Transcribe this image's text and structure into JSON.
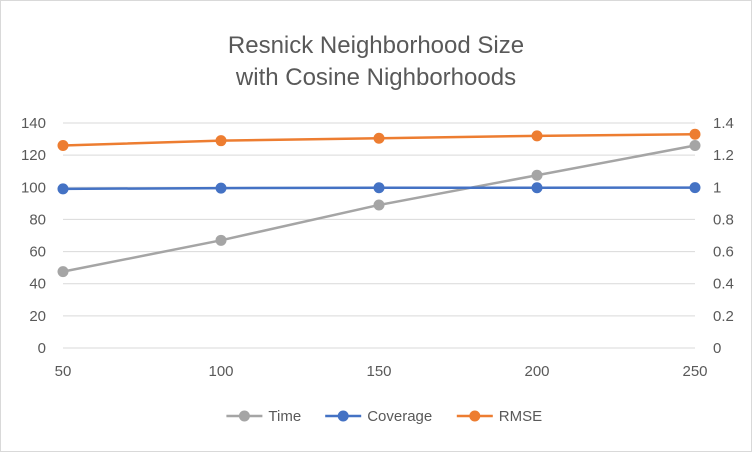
{
  "chart_data": {
    "type": "line",
    "title": [
      "Resnick Neighborhood Size",
      "with Cosine Nighborhoods"
    ],
    "x": [
      50,
      100,
      150,
      200,
      250
    ],
    "xlim": [
      50,
      250
    ],
    "x_ticks": [
      "50",
      "100",
      "150",
      "200",
      "250"
    ],
    "y_left": {
      "lim": [
        0,
        140
      ],
      "ticks": [
        "0",
        "20",
        "40",
        "60",
        "80",
        "100",
        "120",
        "140"
      ]
    },
    "y_right": {
      "lim": [
        0,
        1.4
      ],
      "ticks": [
        "0",
        "0.2",
        "0.4",
        "0.6",
        "0.8",
        "1",
        "1.2",
        "1.4"
      ]
    },
    "grid": "horizontal",
    "legend_position": "bottom",
    "series": [
      {
        "name": "Time",
        "axis": "left",
        "color": "#a5a5a5",
        "values": [
          47.5,
          67,
          89,
          107.5,
          126
        ]
      },
      {
        "name": "Coverage",
        "axis": "right",
        "color": "#4472c4",
        "values": [
          0.99,
          0.995,
          0.997,
          0.997,
          0.998
        ]
      },
      {
        "name": "RMSE",
        "axis": "right",
        "color": "#ed7d31",
        "values": [
          1.26,
          1.29,
          1.305,
          1.32,
          1.33
        ]
      }
    ]
  }
}
